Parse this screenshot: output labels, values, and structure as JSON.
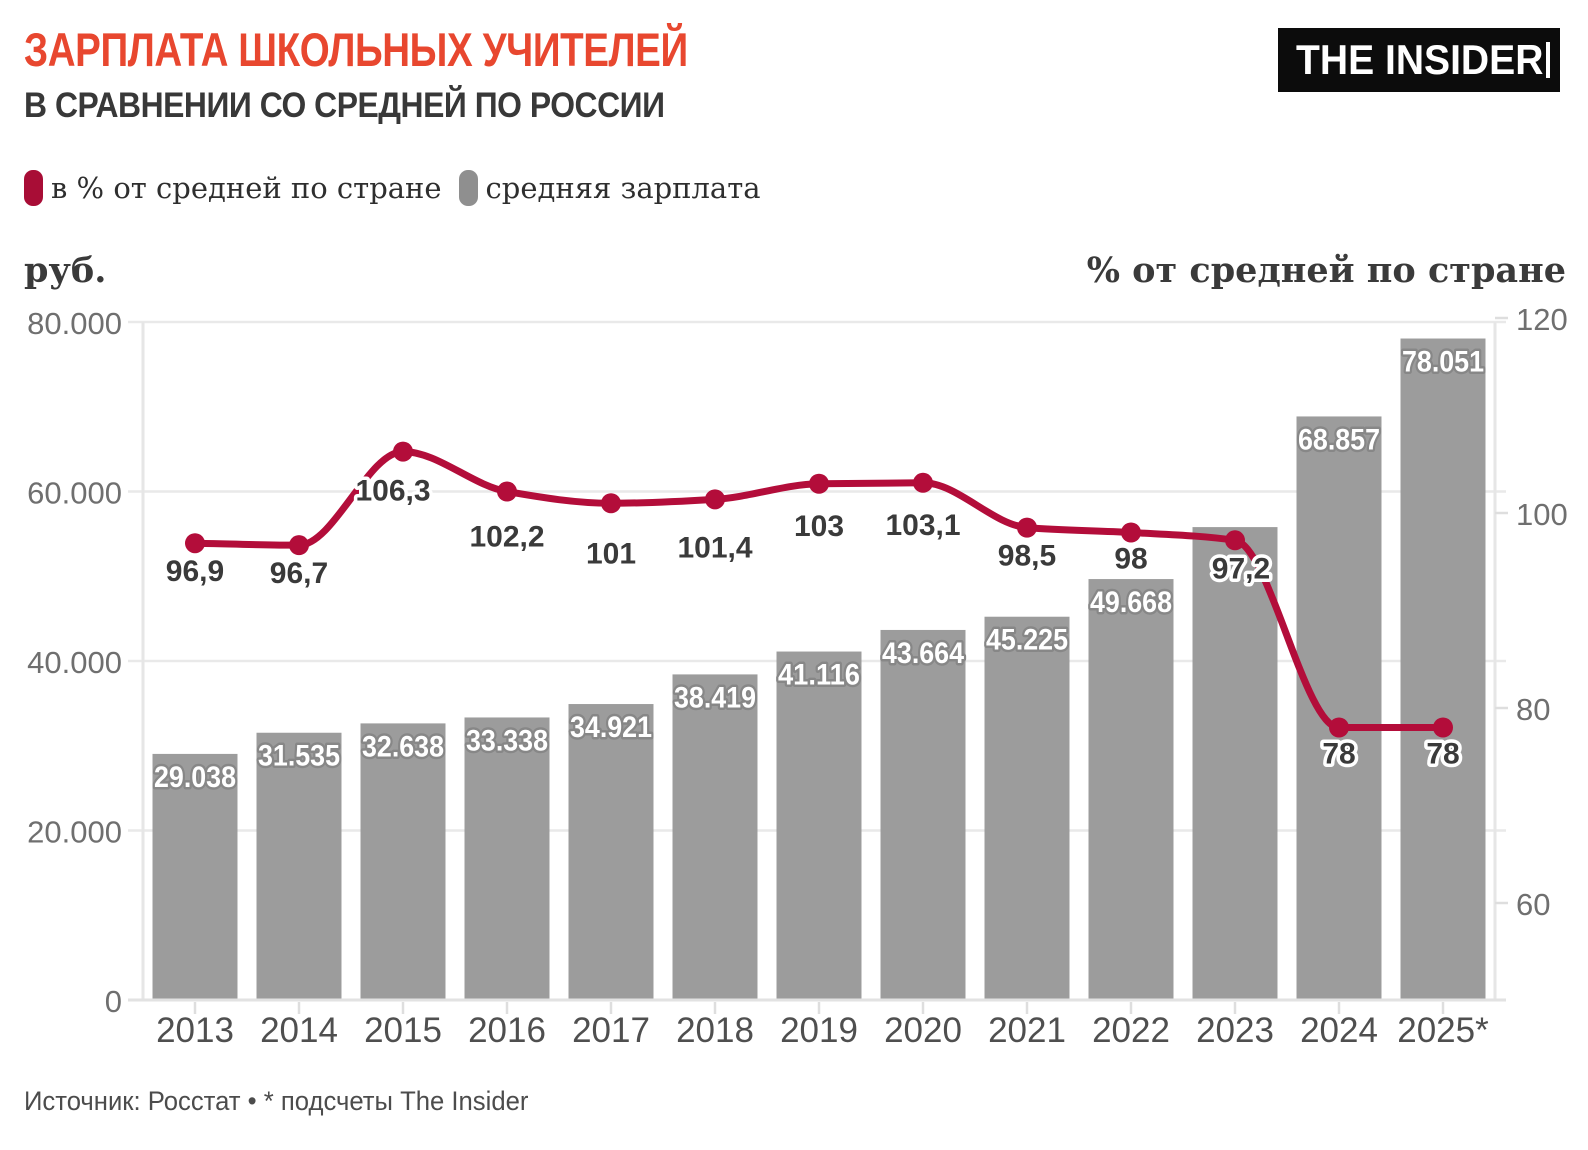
{
  "header": {
    "title": "ЗАРПЛАТА ШКОЛЬНЫХ УЧИТЕЛЕЙ",
    "subtitle": "В СРАВНЕНИИ СО СРЕДНЕЙ ПО РОССИИ",
    "title_color": "#e8472f"
  },
  "logo": {
    "text": "THE INSIDER"
  },
  "legend": {
    "items": [
      {
        "label": "в % от средней по стране",
        "color": "#a80d36",
        "series": "line"
      },
      {
        "label": "средняя зарплата",
        "color": "#8f8f8f",
        "series": "bar"
      }
    ]
  },
  "axes": {
    "left": {
      "title": "руб.",
      "tick_values": [
        0,
        20000,
        40000,
        60000,
        80000
      ],
      "tick_labels": [
        "0",
        "20.000",
        "40.000",
        "60.000",
        "80.000"
      ],
      "range": [
        0,
        80000
      ]
    },
    "right": {
      "title": "% от средней по стране",
      "tick_values": [
        60,
        80,
        100,
        120
      ],
      "tick_labels": [
        "60",
        "80",
        "100",
        "120"
      ]
    }
  },
  "chart_data": {
    "type": "combo",
    "categories": [
      "2013",
      "2014",
      "2015",
      "2016",
      "2017",
      "2018",
      "2019",
      "2020",
      "2021",
      "2022",
      "2023",
      "2024",
      "2025*"
    ],
    "series": [
      {
        "name": "средняя зарплата",
        "type": "bar",
        "axis": "left",
        "color": "#9c9c9c",
        "values": [
          29038,
          31535,
          32638,
          33338,
          34921,
          38419,
          41116,
          43664,
          45225,
          49668,
          55800,
          68857,
          78051
        ],
        "labels": [
          "29.038",
          "31.535",
          "32.638",
          "33.338",
          "34.921",
          "38.419",
          "41.116",
          "43.664",
          "45.225",
          "49.668",
          null,
          "68.857",
          "78.051"
        ],
        "note": "2023 bar shows no data label in the chart; its value ~55.800 is estimated from gridlines"
      },
      {
        "name": "в % от средней по стране",
        "type": "line",
        "axis": "right",
        "color": "#b30d3a",
        "values": [
          96.9,
          96.7,
          106.3,
          102.2,
          101,
          101.4,
          103,
          103.1,
          98.5,
          98,
          97.2,
          78,
          78
        ],
        "labels": [
          "96,9",
          "96,7",
          "106,3",
          "102,2",
          "101",
          "101,4",
          "103",
          "103,1",
          "98,5",
          "98",
          "97,2",
          "78",
          "78"
        ]
      }
    ],
    "left_axis_range": [
      0,
      80000
    ],
    "grid": "horizontal-left-ticks-only",
    "legend_position": "top-left"
  },
  "source": "Источник: Росстат • * подсчеты The Insider"
}
